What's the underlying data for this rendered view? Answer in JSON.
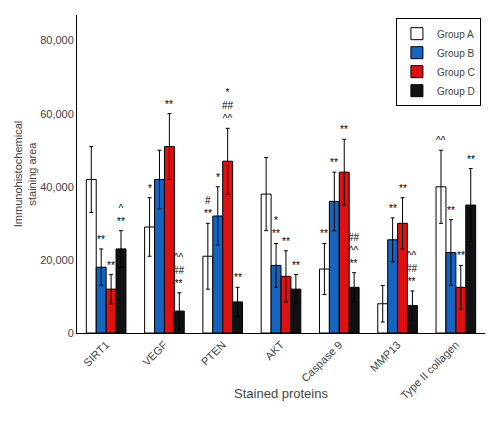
{
  "chart_data": {
    "type": "bar",
    "categories": [
      "SIRT1",
      "VEGF",
      "PTEN",
      "AKT",
      "Caspase 9",
      "MMP13",
      "Type II collagen"
    ],
    "series": [
      {
        "name": "Group A",
        "color": "white",
        "values": [
          42000,
          29000,
          21000,
          38000,
          17500,
          8000,
          40000
        ],
        "errors": [
          9000,
          8000,
          9000,
          10000,
          7000,
          5000,
          10000
        ]
      },
      {
        "name": "Group B",
        "color": "#1565c0",
        "values": [
          18000,
          42000,
          32000,
          18500,
          36000,
          25500,
          22000
        ],
        "errors": [
          5000,
          8000,
          8000,
          6000,
          8000,
          6000,
          9000
        ]
      },
      {
        "name": "Group C",
        "color": "#dd1111",
        "values": [
          12000,
          51000,
          47000,
          15500,
          44000,
          30000,
          12500
        ],
        "errors": [
          4000,
          9000,
          9000,
          7000,
          9000,
          7000,
          6000
        ]
      },
      {
        "name": "Group D",
        "color": "#111111",
        "values": [
          23000,
          6000,
          8500,
          12000,
          12500,
          7500,
          35000
        ],
        "errors": [
          5000,
          5000,
          4000,
          4000,
          4000,
          4000,
          10000
        ]
      }
    ],
    "xlabel": "Stained proteins",
    "ylabel": "Immunohistochemical\nstaining area",
    "ylim": [
      0,
      87000
    ],
    "yticks": [
      0,
      {
        "value": 20000,
        "label": "20,000"
      },
      {
        "value": 40000,
        "label": "40,000"
      },
      {
        "value": 60000,
        "label": "60,000"
      },
      {
        "value": 80000,
        "label": "80,000"
      }
    ],
    "grid": false,
    "legend": "upper right",
    "annotations": [
      {
        "category": "SIRT1",
        "series": "Group B",
        "texts": [
          "**"
        ]
      },
      {
        "category": "SIRT1",
        "series": "Group C",
        "texts": [
          "**"
        ]
      },
      {
        "category": "SIRT1",
        "series": "Group D",
        "texts": [
          "**",
          "^"
        ]
      },
      {
        "category": "VEGF",
        "series": "Group A",
        "texts": [
          "*"
        ]
      },
      {
        "category": "VEGF",
        "series": "Group C",
        "texts": [
          "**"
        ]
      },
      {
        "category": "VEGF",
        "series": "Group D",
        "texts": [
          "**",
          "##",
          "^^"
        ]
      },
      {
        "category": "PTEN",
        "series": "Group A",
        "texts": [
          "**",
          "#"
        ]
      },
      {
        "category": "PTEN",
        "series": "Group B",
        "texts": [
          "*"
        ]
      },
      {
        "category": "PTEN",
        "series": "Group C",
        "texts": [
          "^^",
          "##",
          "*"
        ]
      },
      {
        "category": "PTEN",
        "series": "Group D",
        "texts": [
          "**"
        ]
      },
      {
        "category": "AKT",
        "series": "Group B",
        "texts": [
          "**",
          "*"
        ]
      },
      {
        "category": "AKT",
        "series": "Group C",
        "texts": [
          "**"
        ]
      },
      {
        "category": "AKT",
        "series": "Group D",
        "texts": [
          "**"
        ]
      },
      {
        "category": "Caspase 9",
        "series": "Group A",
        "texts": [
          "**"
        ]
      },
      {
        "category": "Caspase 9",
        "series": "Group B",
        "texts": [
          "**"
        ]
      },
      {
        "category": "Caspase 9",
        "series": "Group C",
        "texts": [
          "**"
        ]
      },
      {
        "category": "Caspase 9",
        "series": "Group D",
        "texts": [
          "**",
          "^^",
          "##"
        ]
      },
      {
        "category": "MMP13",
        "series": "Group B",
        "texts": [
          "**"
        ]
      },
      {
        "category": "MMP13",
        "series": "Group C",
        "texts": [
          "**"
        ]
      },
      {
        "category": "MMP13",
        "series": "Group D",
        "texts": [
          "**",
          "##",
          "^^"
        ]
      },
      {
        "category": "Type II collagen",
        "series": "Group A",
        "texts": [
          "^^"
        ]
      },
      {
        "category": "Type II collagen",
        "series": "Group B",
        "texts": [
          "**"
        ]
      },
      {
        "category": "Type II collagen",
        "series": "Group C",
        "texts": [
          "**"
        ]
      },
      {
        "category": "Type II collagen",
        "series": "Group D",
        "texts": [
          "**"
        ]
      }
    ]
  }
}
